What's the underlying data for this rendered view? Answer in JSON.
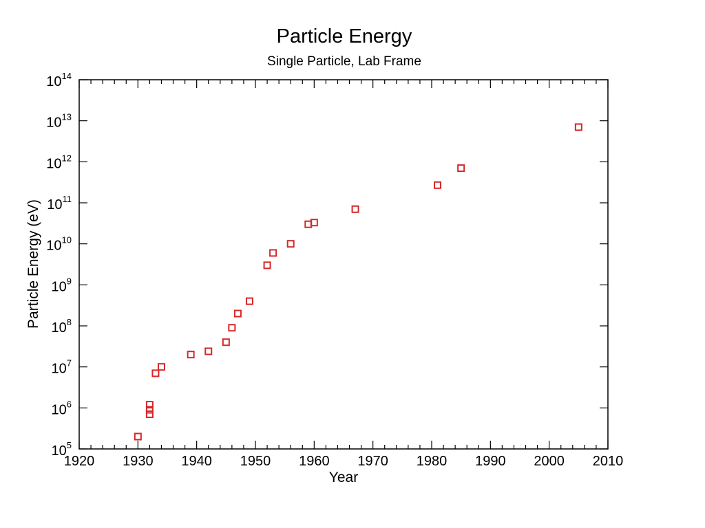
{
  "chart_data": {
    "type": "scatter",
    "title": "Particle Energy",
    "subtitle": "Single Particle, Lab Frame",
    "xlabel": "Year",
    "ylabel": "Particle Energy (eV)",
    "xlim": [
      1920,
      2010
    ],
    "ylim_exponent": [
      5,
      14
    ],
    "y_scale": "log10",
    "x_ticks": [
      "1920",
      "1930",
      "1940",
      "1950",
      "1960",
      "1970",
      "1980",
      "1990",
      "2000",
      "2010"
    ],
    "y_ticks": [
      {
        "base": "10",
        "exp": "5"
      },
      {
        "base": "10",
        "exp": "6"
      },
      {
        "base": "10",
        "exp": "7"
      },
      {
        "base": "10",
        "exp": "8"
      },
      {
        "base": "10",
        "exp": "9"
      },
      {
        "base": "10",
        "exp": "10"
      },
      {
        "base": "10",
        "exp": "11"
      },
      {
        "base": "10",
        "exp": "12"
      },
      {
        "base": "10",
        "exp": "13"
      },
      {
        "base": "10",
        "exp": "14"
      }
    ],
    "marker": "open-square",
    "marker_color": "#d62728",
    "series": [
      {
        "name": "Particle Energy",
        "points": [
          {
            "x": 1930,
            "y": 200000
          },
          {
            "x": 1932,
            "y": 700000
          },
          {
            "x": 1932,
            "y": 900000
          },
          {
            "x": 1932,
            "y": 1200000
          },
          {
            "x": 1933,
            "y": 7000000
          },
          {
            "x": 1934,
            "y": 10000000
          },
          {
            "x": 1939,
            "y": 20000000
          },
          {
            "x": 1942,
            "y": 24000000
          },
          {
            "x": 1945,
            "y": 40000000
          },
          {
            "x": 1946,
            "y": 90000000
          },
          {
            "x": 1947,
            "y": 200000000
          },
          {
            "x": 1949,
            "y": 400000000
          },
          {
            "x": 1952,
            "y": 3000000000
          },
          {
            "x": 1953,
            "y": 6000000000
          },
          {
            "x": 1956,
            "y": 10000000000
          },
          {
            "x": 1959,
            "y": 30000000000
          },
          {
            "x": 1960,
            "y": 33000000000
          },
          {
            "x": 1967,
            "y": 70000000000
          },
          {
            "x": 1981,
            "y": 270000000000
          },
          {
            "x": 1985,
            "y": 700000000000
          },
          {
            "x": 2005,
            "y": 7000000000000
          }
        ]
      }
    ]
  }
}
